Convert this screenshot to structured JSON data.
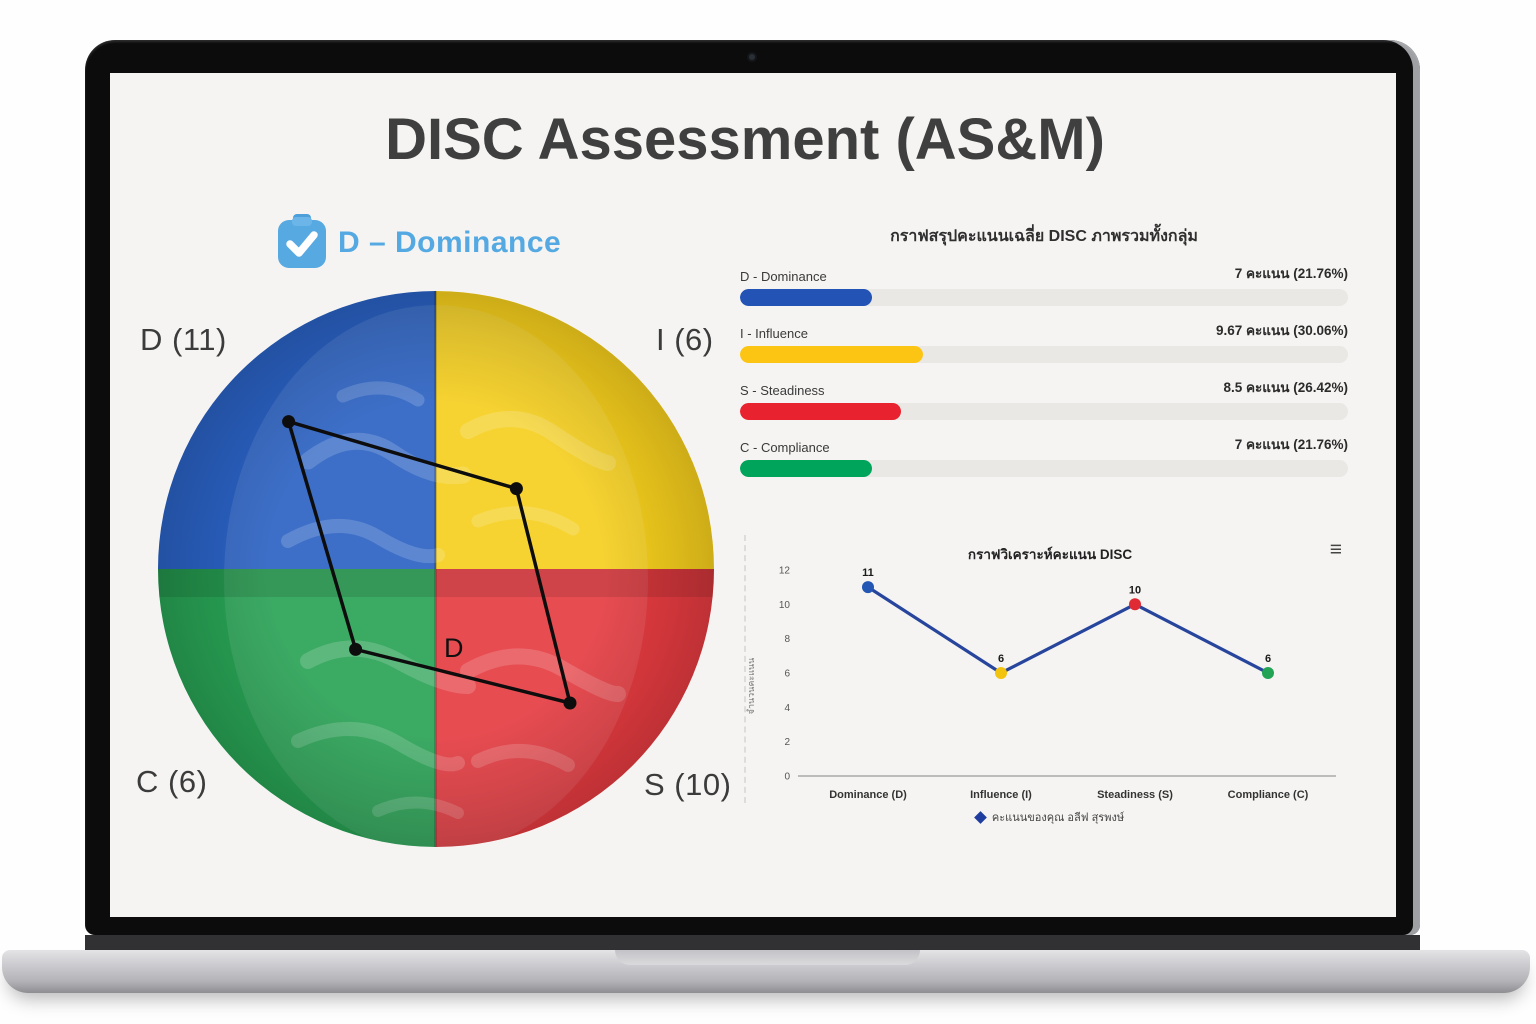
{
  "app": {
    "title": "DISC Assessment (AS&M)"
  },
  "trait_header": {
    "label": "D – Dominance",
    "icon": "clipboard-check-icon",
    "accent_color": "#55a9e2"
  },
  "brain_chart": {
    "center_label": "D",
    "quadrants": [
      {
        "code": "D",
        "label": "D (11)",
        "score": 11,
        "color": "#2a61c3",
        "position": "top-left"
      },
      {
        "code": "I",
        "label": "I (6)",
        "score": 6,
        "color": "#f6cf1d",
        "position": "top-right"
      },
      {
        "code": "S",
        "label": "S (10)",
        "score": 10,
        "color": "#e53b40",
        "position": "bottom-right"
      },
      {
        "code": "C",
        "label": "C (6)",
        "score": 6,
        "color": "#28a254",
        "position": "bottom-left"
      }
    ]
  },
  "chart_data": [
    {
      "type": "bar",
      "orientation": "horizontal",
      "title": "กราฟสรุปคะแนนเฉลี่ย DISC ภาพรวมทั้งกลุ่ม",
      "categories": [
        "D - Dominance",
        "I - Influence",
        "S - Steadiness",
        "C - Compliance"
      ],
      "values": [
        7,
        9.67,
        8.5,
        7
      ],
      "percentages": [
        21.76,
        30.06,
        26.42,
        21.76
      ],
      "value_labels": [
        "7 คะแนน (21.76%)",
        "9.67 คะแนน (30.06%)",
        "8.5 คะแนน (26.42%)",
        "7 คะแนน (21.76%)"
      ],
      "colors": [
        "#2253b5",
        "#fdc513",
        "#e8222e",
        "#00a45b"
      ],
      "track_color": "#e9e8e5",
      "xlim": [
        0,
        100
      ],
      "grid": false
    },
    {
      "type": "line",
      "title": "กราฟวิเคราะห์คะแนน DISC",
      "categories": [
        "Dominance (D)",
        "Influence (I)",
        "Steadiness (S)",
        "Compliance (C)"
      ],
      "values": [
        11,
        6,
        10,
        6
      ],
      "point_colors": [
        "#2456b4",
        "#f2c40f",
        "#e02b35",
        "#23a455"
      ],
      "line_color": "#27459c",
      "ylabel": "จำนวนคะแนน",
      "yticks": [
        0,
        2,
        4,
        6,
        8,
        10,
        12
      ],
      "ylim": [
        0,
        13
      ],
      "grid": false,
      "legend_position": "bottom",
      "legend": [
        {
          "label": "คะแนนของคุณ อลีฟ สุรพงษ์",
          "marker_color": "#1f3d9e"
        }
      ],
      "menu_icon": "≡"
    }
  ]
}
